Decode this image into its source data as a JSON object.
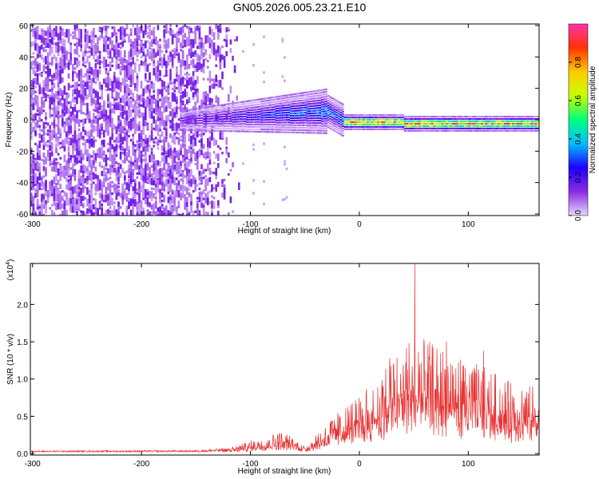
{
  "title": "GN05.2026.005.23.21.E10",
  "chart_data": [
    {
      "type": "heatmap",
      "xlabel": "Height of straight line (km)",
      "ylabel": "Frequency (Hz)",
      "xlim": [
        -302,
        165
      ],
      "ylim": [
        -61,
        61
      ],
      "xticks": [
        -300,
        -200,
        -100,
        0,
        100
      ],
      "yticks": [
        -60,
        -40,
        -20,
        0,
        20,
        40,
        60
      ],
      "colorbar": {
        "label": "Normalized spectral amplitude",
        "range": [
          0.0,
          1.0
        ],
        "ticks": [
          0.0,
          0.2,
          0.4,
          0.6,
          0.8
        ],
        "tick_labels": [
          "0.0",
          "0.2",
          "0.4",
          "0.6",
          "0.8"
        ],
        "colormap": [
          "#e6d8ff",
          "#8a2be2",
          "#1f00ff",
          "#00bfff",
          "#00ff7f",
          "#c8ff00",
          "#ffcc00",
          "#ff3300",
          "#ff33aa"
        ]
      },
      "regions": [
        {
          "x_range": [
            -302,
            -115
          ],
          "freq_range": [
            -60,
            60
          ],
          "amplitude": 0.08,
          "description_of_values": "broadband low amplitude"
        },
        {
          "x_range": [
            -160,
            -30
          ],
          "freq_range": [
            -12,
            18
          ],
          "amplitude": 0.3
        },
        {
          "x_range": [
            -30,
            165
          ],
          "freq_range": [
            -6,
            6
          ],
          "amplitude": 0.9
        }
      ]
    },
    {
      "type": "line",
      "xlabel": "Height of straight line (km)",
      "ylabel": "SNR (10 * v/v)",
      "y_multiplier": "(x10^4)",
      "xlim": [
        -302,
        165
      ],
      "ylim": [
        -0.02,
        2.55
      ],
      "xticks": [
        -300,
        -200,
        -100,
        0,
        100
      ],
      "yticks": [
        0.0,
        0.5,
        1.0,
        1.5,
        2.0
      ],
      "ytick_labels": [
        "0.0",
        "0.5",
        "1.0",
        "1.5",
        "2.0"
      ],
      "color": "#e83030",
      "envelope": [
        {
          "x": -302,
          "y": 0.03
        },
        {
          "x": -150,
          "y": 0.04
        },
        {
          "x": -115,
          "y": 0.1
        },
        {
          "x": -90,
          "y": 0.22
        },
        {
          "x": -70,
          "y": 0.3
        },
        {
          "x": -50,
          "y": 0.12
        },
        {
          "x": -25,
          "y": 0.5
        },
        {
          "x": 0,
          "y": 0.8
        },
        {
          "x": 30,
          "y": 1.3
        },
        {
          "x": 50,
          "y": 1.6
        },
        {
          "x": 80,
          "y": 1.4
        },
        {
          "x": 110,
          "y": 1.2
        },
        {
          "x": 140,
          "y": 0.95
        },
        {
          "x": 165,
          "y": 0.9
        }
      ],
      "peaks": [
        {
          "x": 51,
          "y": 2.55
        },
        {
          "x": 80,
          "y": 1.5
        },
        {
          "x": 114,
          "y": 1.38
        },
        {
          "x": 28,
          "y": 1.28
        }
      ]
    }
  ]
}
